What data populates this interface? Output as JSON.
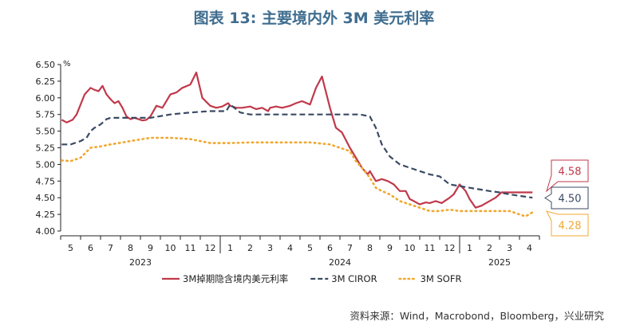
{
  "title": "图表 13: 主要境内外 3M 美元利率",
  "source": "资料来源：Wind，Macrobond，Bloomberg，兴业研究",
  "chart_data": {
    "type": "line",
    "title": "图表 13: 主要境内外 3M 美元利率",
    "ylabel": "%",
    "ylim": [
      4.0,
      6.5
    ],
    "yticks": [
      4.0,
      4.25,
      4.5,
      4.75,
      5.0,
      5.25,
      5.5,
      5.75,
      6.0,
      6.25,
      6.5
    ],
    "ytick_labels": [
      "4.00",
      "4.25",
      "4.50",
      "4.75",
      "5.00",
      "5.25",
      "5.50",
      "5.75",
      "6.00",
      "6.25",
      "6.50"
    ],
    "x_ticks": [
      "5",
      "6",
      "7",
      "8",
      "9",
      "10",
      "11",
      "12",
      "1",
      "2",
      "3",
      "4",
      "5",
      "6",
      "7",
      "8",
      "9",
      "10",
      "11",
      "12",
      "1",
      "2",
      "3",
      "4"
    ],
    "years": [
      {
        "label": "2023",
        "center_index": 3.5
      },
      {
        "label": "2024",
        "center_index": 13.5
      },
      {
        "label": "2025",
        "center_index": 21.5
      }
    ],
    "x_range": [
      -0.5,
      23.5
    ],
    "grid": false,
    "legend_position": "bottom",
    "series": [
      {
        "name": "3M掉期隐含境内美元利率",
        "color": "#c0394b",
        "style": "solid",
        "x": [
          -0.45,
          -0.2,
          0.1,
          0.3,
          0.5,
          0.7,
          1.0,
          1.2,
          1.4,
          1.6,
          1.8,
          2.0,
          2.2,
          2.4,
          2.6,
          2.8,
          3.0,
          3.2,
          3.4,
          3.6,
          3.8,
          4.0,
          4.3,
          4.6,
          5.0,
          5.3,
          5.6,
          6.0,
          6.3,
          6.6,
          7.0,
          7.3,
          7.6,
          7.9,
          8.0,
          8.3,
          8.6,
          9.0,
          9.3,
          9.6,
          9.9,
          10.0,
          10.3,
          10.6,
          11.0,
          11.3,
          11.6,
          12.0,
          12.3,
          12.6,
          13.0,
          13.3,
          13.6,
          14.0,
          14.3,
          14.6,
          14.9,
          15.0,
          15.3,
          15.6,
          15.9,
          16.2,
          16.5,
          16.8,
          17.0,
          17.2,
          17.5,
          17.8,
          18.0,
          18.3,
          18.6,
          19.0,
          19.2,
          19.5,
          19.8,
          20.0,
          20.3,
          20.6,
          21.0,
          21.3,
          21.6,
          22.0,
          22.3,
          22.6,
          22.9,
          23.0,
          23.15
        ],
        "values": [
          5.67,
          5.63,
          5.67,
          5.75,
          5.9,
          6.05,
          6.15,
          6.12,
          6.1,
          6.18,
          6.05,
          5.98,
          5.92,
          5.95,
          5.85,
          5.72,
          5.68,
          5.7,
          5.68,
          5.66,
          5.67,
          5.72,
          5.88,
          5.85,
          6.05,
          6.08,
          6.15,
          6.2,
          6.38,
          6.0,
          5.88,
          5.85,
          5.87,
          5.92,
          5.88,
          5.85,
          5.85,
          5.87,
          5.83,
          5.85,
          5.8,
          5.85,
          5.87,
          5.85,
          5.88,
          5.92,
          5.95,
          5.9,
          6.15,
          6.32,
          5.85,
          5.55,
          5.48,
          5.25,
          5.1,
          4.95,
          4.85,
          4.9,
          4.75,
          4.78,
          4.75,
          4.7,
          4.6,
          4.6,
          4.48,
          4.45,
          4.4,
          4.43,
          4.42,
          4.45,
          4.42,
          4.5,
          4.55,
          4.7,
          4.6,
          4.48,
          4.35,
          4.38,
          4.45,
          4.5,
          4.58,
          4.58,
          4.58,
          4.58,
          4.58,
          4.58,
          4.58
        ]
      },
      {
        "name": "3M CIROR",
        "color": "#3a4a63",
        "style": "dashed",
        "x": [
          -0.45,
          0.0,
          0.5,
          0.8,
          1.0,
          1.2,
          1.5,
          1.8,
          2.0,
          3.0,
          4.0,
          5.0,
          6.0,
          7.0,
          7.8,
          8.0,
          8.5,
          9.0,
          10.0,
          11.0,
          12.0,
          13.0,
          14.0,
          14.5,
          15.0,
          15.3,
          15.6,
          16.0,
          16.5,
          17.0,
          17.5,
          18.0,
          18.5,
          19.0,
          20.0,
          21.0,
          21.5,
          22.0,
          23.15
        ],
        "values": [
          5.3,
          5.3,
          5.35,
          5.4,
          5.5,
          5.55,
          5.6,
          5.68,
          5.7,
          5.7,
          5.7,
          5.75,
          5.78,
          5.8,
          5.8,
          5.9,
          5.78,
          5.75,
          5.75,
          5.75,
          5.75,
          5.75,
          5.75,
          5.75,
          5.72,
          5.55,
          5.3,
          5.12,
          5.0,
          4.95,
          4.9,
          4.85,
          4.82,
          4.7,
          4.65,
          4.6,
          4.58,
          4.55,
          4.5
        ]
      },
      {
        "name": "3M SOFR",
        "color": "#f0a830",
        "style": "dotted",
        "x": [
          -0.45,
          0.0,
          0.5,
          1.0,
          1.5,
          2.0,
          3.0,
          4.0,
          5.0,
          6.0,
          7.0,
          8.0,
          9.0,
          10.0,
          11.0,
          12.0,
          13.0,
          14.0,
          14.3,
          14.6,
          15.0,
          15.3,
          15.6,
          16.0,
          16.5,
          17.0,
          17.5,
          18.0,
          18.5,
          19.0,
          19.5,
          20.0,
          21.0,
          22.0,
          22.5,
          22.8,
          23.15
        ],
        "values": [
          5.06,
          5.05,
          5.1,
          5.25,
          5.27,
          5.3,
          5.35,
          5.4,
          5.4,
          5.38,
          5.32,
          5.32,
          5.33,
          5.33,
          5.33,
          5.33,
          5.3,
          5.2,
          5.05,
          4.95,
          4.8,
          4.65,
          4.6,
          4.55,
          4.45,
          4.4,
          4.35,
          4.3,
          4.3,
          4.32,
          4.3,
          4.3,
          4.3,
          4.3,
          4.25,
          4.22,
          4.28
        ]
      }
    ],
    "end_labels": [
      {
        "value": "4.58",
        "color": "#c0394b"
      },
      {
        "value": "4.50",
        "color": "#3a4a63"
      },
      {
        "value": "4.28",
        "color": "#f0a830"
      }
    ]
  }
}
